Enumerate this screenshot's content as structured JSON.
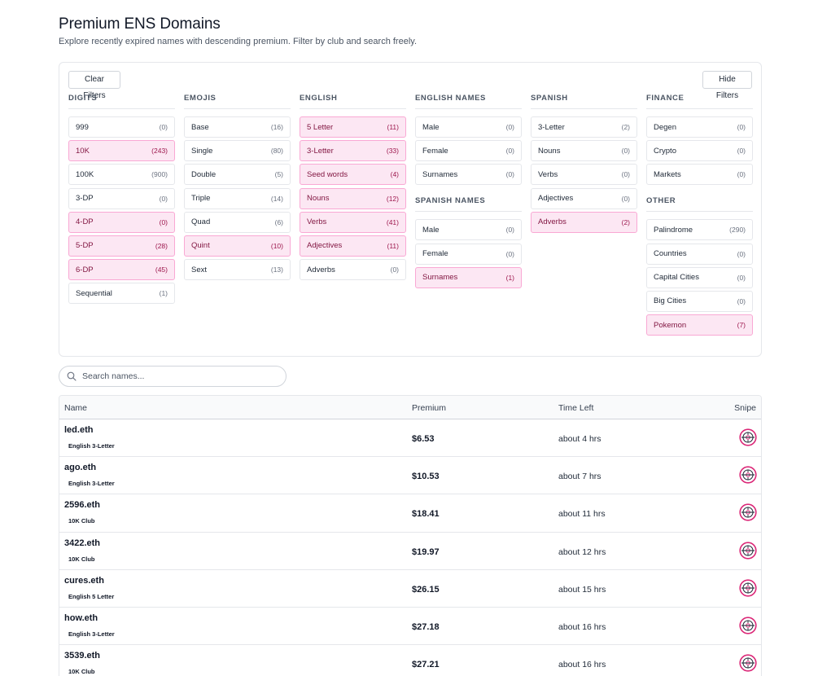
{
  "page": {
    "title": "Premium ENS Domains",
    "subtitle": "Explore recently expired names with descending premium. Filter by club and search freely."
  },
  "filters": {
    "clear_label": "Clear Filters",
    "hide_label": "Hide Filters",
    "columns": [
      {
        "groups": [
          {
            "title": "DIGITS",
            "items": [
              {
                "label": "999",
                "count": "(0)",
                "selected": false
              },
              {
                "label": "10K",
                "count": "(243)",
                "selected": true
              },
              {
                "label": "100K",
                "count": "(900)",
                "selected": false
              },
              {
                "label": "3-DP",
                "count": "(0)",
                "selected": false
              },
              {
                "label": "4-DP",
                "count": "(0)",
                "selected": true
              },
              {
                "label": "5-DP",
                "count": "(28)",
                "selected": true
              },
              {
                "label": "6-DP",
                "count": "(45)",
                "selected": true
              },
              {
                "label": "Sequential",
                "count": "(1)",
                "selected": false
              }
            ]
          }
        ]
      },
      {
        "groups": [
          {
            "title": "EMOJIS",
            "items": [
              {
                "label": "Base",
                "count": "(16)",
                "selected": false
              },
              {
                "label": "Single",
                "count": "(80)",
                "selected": false
              },
              {
                "label": "Double",
                "count": "(5)",
                "selected": false
              },
              {
                "label": "Triple",
                "count": "(14)",
                "selected": false
              },
              {
                "label": "Quad",
                "count": "(6)",
                "selected": false
              },
              {
                "label": "Quint",
                "count": "(10)",
                "selected": true
              },
              {
                "label": "Sext",
                "count": "(13)",
                "selected": false
              }
            ]
          }
        ]
      },
      {
        "groups": [
          {
            "title": "ENGLISH",
            "items": [
              {
                "label": "5 Letter",
                "count": "(11)",
                "selected": true
              },
              {
                "label": "3-Letter",
                "count": "(33)",
                "selected": true
              },
              {
                "label": "Seed words",
                "count": "(4)",
                "selected": true
              },
              {
                "label": "Nouns",
                "count": "(12)",
                "selected": true
              },
              {
                "label": "Verbs",
                "count": "(41)",
                "selected": true
              },
              {
                "label": "Adjectives",
                "count": "(11)",
                "selected": true
              },
              {
                "label": "Adverbs",
                "count": "(0)",
                "selected": false
              }
            ]
          }
        ]
      },
      {
        "groups": [
          {
            "title": "ENGLISH NAMES",
            "items": [
              {
                "label": "Male",
                "count": "(0)",
                "selected": false
              },
              {
                "label": "Female",
                "count": "(0)",
                "selected": false
              },
              {
                "label": "Surnames",
                "count": "(0)",
                "selected": false
              }
            ]
          },
          {
            "title": "SPANISH NAMES",
            "items": [
              {
                "label": "Male",
                "count": "(0)",
                "selected": false
              },
              {
                "label": "Female",
                "count": "(0)",
                "selected": false
              },
              {
                "label": "Surnames",
                "count": "(1)",
                "selected": true
              }
            ]
          }
        ]
      },
      {
        "groups": [
          {
            "title": "SPANISH",
            "items": [
              {
                "label": "3-Letter",
                "count": "(2)",
                "selected": false
              },
              {
                "label": "Nouns",
                "count": "(0)",
                "selected": false
              },
              {
                "label": "Verbs",
                "count": "(0)",
                "selected": false
              },
              {
                "label": "Adjectives",
                "count": "(0)",
                "selected": false
              },
              {
                "label": "Adverbs",
                "count": "(2)",
                "selected": true
              }
            ]
          }
        ]
      },
      {
        "groups": [
          {
            "title": "FINANCE",
            "items": [
              {
                "label": "Degen",
                "count": "(0)",
                "selected": false
              },
              {
                "label": "Crypto",
                "count": "(0)",
                "selected": false
              },
              {
                "label": "Markets",
                "count": "(0)",
                "selected": false
              }
            ]
          },
          {
            "title": "OTHER",
            "items": [
              {
                "label": "Palindrome",
                "count": "(290)",
                "selected": false
              },
              {
                "label": "Countries",
                "count": "(0)",
                "selected": false
              },
              {
                "label": "Capital Cities",
                "count": "(0)",
                "selected": false
              },
              {
                "label": "Big Cities",
                "count": "(0)",
                "selected": false
              },
              {
                "label": "Pokemon",
                "count": "(7)",
                "selected": true
              }
            ]
          }
        ]
      }
    ]
  },
  "search": {
    "placeholder": "Search names...",
    "icon": "search-icon"
  },
  "table": {
    "headers": {
      "name": "Name",
      "premium": "Premium",
      "time_left": "Time Left",
      "snipe": "Snipe"
    },
    "rows": [
      {
        "name": "led.eth",
        "club": "English 3-Letter",
        "premium": "$6.53",
        "time_left": "about 4 hrs"
      },
      {
        "name": "ago.eth",
        "club": "English 3-Letter",
        "premium": "$10.53",
        "time_left": "about 7 hrs"
      },
      {
        "name": "2596.eth",
        "club": "10K Club",
        "premium": "$18.41",
        "time_left": "about 11 hrs"
      },
      {
        "name": "3422.eth",
        "club": "10K Club",
        "premium": "$19.97",
        "time_left": "about 12 hrs"
      },
      {
        "name": "cures.eth",
        "club": "English 5 Letter",
        "premium": "$26.15",
        "time_left": "about 15 hrs"
      },
      {
        "name": "how.eth",
        "club": "English 3-Letter",
        "premium": "$27.18",
        "time_left": "about 16 hrs"
      },
      {
        "name": "3539.eth",
        "club": "10K Club",
        "premium": "$27.21",
        "time_left": "about 16 hrs"
      }
    ]
  },
  "colors": {
    "selected_bg": "#fce7f3",
    "selected_border": "#f9a8d4",
    "accent": "#db2777"
  }
}
